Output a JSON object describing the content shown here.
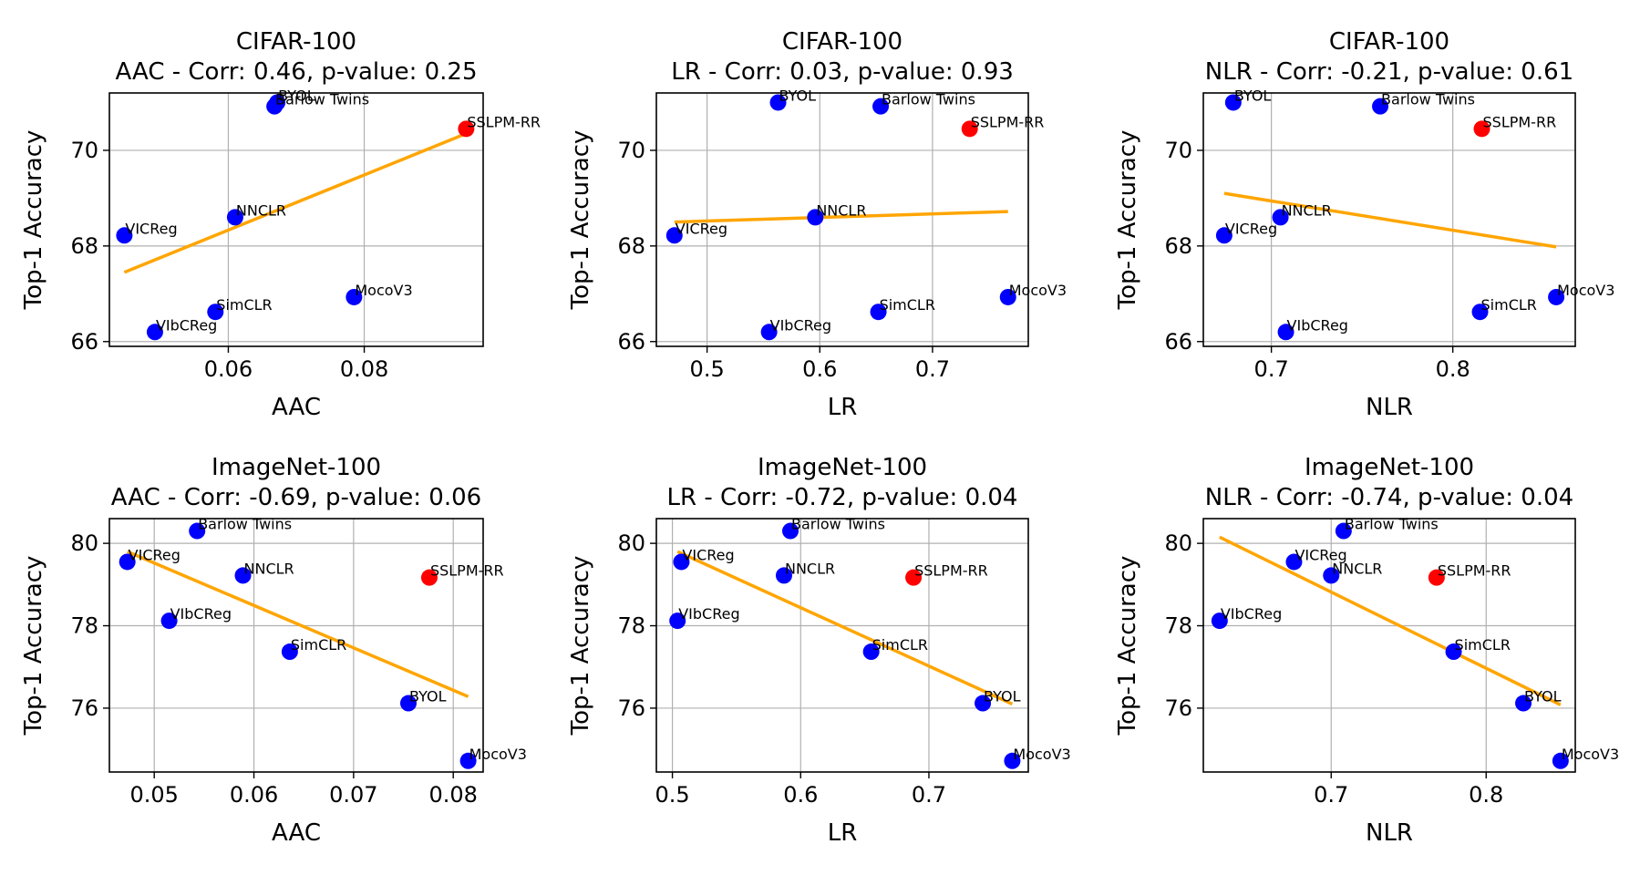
{
  "chart_data": [
    {
      "type": "scatter",
      "title": "CIFAR-100",
      "subtitle": "AAC - Corr: 0.46, p-value: 0.25",
      "xlabel": "AAC",
      "ylabel": "Top-1 Accuracy",
      "xlim": [
        0.0425,
        0.0975
      ],
      "ylim": [
        65.9,
        71.2
      ],
      "xticks": [
        0.06,
        0.08
      ],
      "xtick_labels": [
        "0.06",
        "0.08"
      ],
      "yticks": [
        66,
        68,
        70
      ],
      "ytick_labels": [
        "66",
        "68",
        "70"
      ],
      "grid": true,
      "points": [
        {
          "label": "BYOL",
          "x": 0.0672,
          "y": 71.0,
          "color": "#0000ff"
        },
        {
          "label": "Barlow Twins",
          "x": 0.0668,
          "y": 70.92,
          "color": "#0000ff"
        },
        {
          "label": "SSLPM-RR",
          "x": 0.095,
          "y": 70.45,
          "color": "#ff0000"
        },
        {
          "label": "NNCLR",
          "x": 0.061,
          "y": 68.6,
          "color": "#0000ff"
        },
        {
          "label": "VICReg",
          "x": 0.0447,
          "y": 68.22,
          "color": "#0000ff"
        },
        {
          "label": "MocoV3",
          "x": 0.0785,
          "y": 66.93,
          "color": "#0000ff"
        },
        {
          "label": "SimCLR",
          "x": 0.0581,
          "y": 66.62,
          "color": "#0000ff"
        },
        {
          "label": "VIbCReg",
          "x": 0.0492,
          "y": 66.2,
          "color": "#0000ff"
        }
      ],
      "trend": {
        "x": [
          0.0447,
          0.095
        ],
        "y": [
          67.45,
          70.35
        ],
        "color": "#ffa500"
      }
    },
    {
      "type": "scatter",
      "title": "CIFAR-100",
      "subtitle": "LR - Corr: 0.03, p-value: 0.93",
      "xlabel": "LR",
      "ylabel": "Top-1 Accuracy",
      "xlim": [
        0.455,
        0.785
      ],
      "ylim": [
        65.9,
        71.2
      ],
      "xticks": [
        0.5,
        0.6,
        0.7
      ],
      "xtick_labels": [
        "0.5",
        "0.6",
        "0.7"
      ],
      "yticks": [
        66,
        68,
        70
      ],
      "ytick_labels": [
        "66",
        "68",
        "70"
      ],
      "grid": true,
      "points": [
        {
          "label": "BYOL",
          "x": 0.563,
          "y": 71.0,
          "color": "#0000ff"
        },
        {
          "label": "Barlow Twins",
          "x": 0.654,
          "y": 70.92,
          "color": "#0000ff"
        },
        {
          "label": "SSLPM-RR",
          "x": 0.733,
          "y": 70.45,
          "color": "#ff0000"
        },
        {
          "label": "NNCLR",
          "x": 0.596,
          "y": 68.6,
          "color": "#0000ff"
        },
        {
          "label": "VICReg",
          "x": 0.471,
          "y": 68.22,
          "color": "#0000ff"
        },
        {
          "label": "MocoV3",
          "x": 0.767,
          "y": 66.93,
          "color": "#0000ff"
        },
        {
          "label": "SimCLR",
          "x": 0.652,
          "y": 66.62,
          "color": "#0000ff"
        },
        {
          "label": "VIbCReg",
          "x": 0.555,
          "y": 66.2,
          "color": "#0000ff"
        }
      ],
      "trend": {
        "x": [
          0.471,
          0.767
        ],
        "y": [
          68.5,
          68.72
        ],
        "color": "#ffa500"
      }
    },
    {
      "type": "scatter",
      "title": "CIFAR-100",
      "subtitle": "NLR - Corr: -0.21, p-value: 0.61",
      "xlabel": "NLR",
      "ylabel": "Top-1 Accuracy",
      "xlim": [
        0.6625,
        0.8675
      ],
      "ylim": [
        65.9,
        71.2
      ],
      "xticks": [
        0.7,
        0.8
      ],
      "xtick_labels": [
        "0.7",
        "0.8"
      ],
      "yticks": [
        66,
        68,
        70
      ],
      "ytick_labels": [
        "66",
        "68",
        "70"
      ],
      "grid": true,
      "points": [
        {
          "label": "BYOL",
          "x": 0.679,
          "y": 71.0,
          "color": "#0000ff"
        },
        {
          "label": "Barlow Twins",
          "x": 0.76,
          "y": 70.92,
          "color": "#0000ff"
        },
        {
          "label": "SSLPM-RR",
          "x": 0.816,
          "y": 70.45,
          "color": "#ff0000"
        },
        {
          "label": "NNCLR",
          "x": 0.705,
          "y": 68.6,
          "color": "#0000ff"
        },
        {
          "label": "VICReg",
          "x": 0.674,
          "y": 68.22,
          "color": "#0000ff"
        },
        {
          "label": "MocoV3",
          "x": 0.857,
          "y": 66.93,
          "color": "#0000ff"
        },
        {
          "label": "SimCLR",
          "x": 0.815,
          "y": 66.62,
          "color": "#0000ff"
        },
        {
          "label": "VIbCReg",
          "x": 0.708,
          "y": 66.2,
          "color": "#0000ff"
        }
      ],
      "trend": {
        "x": [
          0.674,
          0.857
        ],
        "y": [
          69.1,
          67.98
        ],
        "color": "#ffa500"
      }
    },
    {
      "type": "scatter",
      "title": "ImageNet-100",
      "subtitle": "AAC - Corr: -0.69, p-value: 0.06",
      "xlabel": "AAC",
      "ylabel": "Top-1 Accuracy",
      "xlim": [
        0.0455,
        0.083
      ],
      "ylim": [
        74.45,
        80.6
      ],
      "xticks": [
        0.05,
        0.06,
        0.07,
        0.08
      ],
      "xtick_labels": [
        "0.05",
        "0.06",
        "0.07",
        "0.08"
      ],
      "yticks": [
        76,
        78,
        80
      ],
      "ytick_labels": [
        "76",
        "78",
        "80"
      ],
      "grid": true,
      "points": [
        {
          "label": "Barlow Twins",
          "x": 0.0543,
          "y": 80.3,
          "color": "#0000ff"
        },
        {
          "label": "VICReg",
          "x": 0.0473,
          "y": 79.55,
          "color": "#0000ff"
        },
        {
          "label": "NNCLR",
          "x": 0.0589,
          "y": 79.22,
          "color": "#0000ff"
        },
        {
          "label": "SSLPM-RR",
          "x": 0.0776,
          "y": 79.17,
          "color": "#ff0000"
        },
        {
          "label": "VIbCReg",
          "x": 0.0515,
          "y": 78.12,
          "color": "#0000ff"
        },
        {
          "label": "SimCLR",
          "x": 0.0636,
          "y": 77.37,
          "color": "#0000ff"
        },
        {
          "label": "BYOL",
          "x": 0.0755,
          "y": 76.12,
          "color": "#0000ff"
        },
        {
          "label": "MocoV3",
          "x": 0.0815,
          "y": 74.72,
          "color": "#0000ff"
        }
      ],
      "trend": {
        "x": [
          0.0473,
          0.0815
        ],
        "y": [
          79.8,
          76.28
        ],
        "color": "#ffa500"
      }
    },
    {
      "type": "scatter",
      "title": "ImageNet-100",
      "subtitle": "LR - Corr: -0.72, p-value: 0.04",
      "xlabel": "LR",
      "ylabel": "Top-1 Accuracy",
      "xlim": [
        0.4875,
        0.7775
      ],
      "ylim": [
        74.45,
        80.6
      ],
      "xticks": [
        0.5,
        0.6,
        0.7
      ],
      "xtick_labels": [
        "0.5",
        "0.6",
        "0.7"
      ],
      "yticks": [
        76,
        78,
        80
      ],
      "ytick_labels": [
        "76",
        "78",
        "80"
      ],
      "grid": true,
      "points": [
        {
          "label": "Barlow Twins",
          "x": 0.592,
          "y": 80.3,
          "color": "#0000ff"
        },
        {
          "label": "VICReg",
          "x": 0.507,
          "y": 79.55,
          "color": "#0000ff"
        },
        {
          "label": "NNCLR",
          "x": 0.587,
          "y": 79.22,
          "color": "#0000ff"
        },
        {
          "label": "SSLPM-RR",
          "x": 0.688,
          "y": 79.17,
          "color": "#ff0000"
        },
        {
          "label": "VIbCReg",
          "x": 0.504,
          "y": 78.12,
          "color": "#0000ff"
        },
        {
          "label": "SimCLR",
          "x": 0.655,
          "y": 77.37,
          "color": "#0000ff"
        },
        {
          "label": "BYOL",
          "x": 0.742,
          "y": 76.12,
          "color": "#0000ff"
        },
        {
          "label": "MocoV3",
          "x": 0.765,
          "y": 74.72,
          "color": "#0000ff"
        }
      ],
      "trend": {
        "x": [
          0.504,
          0.765
        ],
        "y": [
          79.8,
          76.1
        ],
        "color": "#ffa500"
      }
    },
    {
      "type": "scatter",
      "title": "ImageNet-100",
      "subtitle": "NLR - Corr: -0.74, p-value: 0.04",
      "xlabel": "NLR",
      "ylabel": "Top-1 Accuracy",
      "xlim": [
        0.6175,
        0.8575
      ],
      "ylim": [
        74.45,
        80.6
      ],
      "xticks": [
        0.7,
        0.8
      ],
      "xtick_labels": [
        "0.7",
        "0.8"
      ],
      "yticks": [
        76,
        78,
        80
      ],
      "ytick_labels": [
        "76",
        "78",
        "80"
      ],
      "grid": true,
      "points": [
        {
          "label": "Barlow Twins",
          "x": 0.708,
          "y": 80.3,
          "color": "#0000ff"
        },
        {
          "label": "VICReg",
          "x": 0.676,
          "y": 79.55,
          "color": "#0000ff"
        },
        {
          "label": "NNCLR",
          "x": 0.7,
          "y": 79.22,
          "color": "#0000ff"
        },
        {
          "label": "SSLPM-RR",
          "x": 0.768,
          "y": 79.17,
          "color": "#ff0000"
        },
        {
          "label": "VIbCReg",
          "x": 0.628,
          "y": 78.12,
          "color": "#0000ff"
        },
        {
          "label": "SimCLR",
          "x": 0.779,
          "y": 77.37,
          "color": "#0000ff"
        },
        {
          "label": "BYOL",
          "x": 0.824,
          "y": 76.12,
          "color": "#0000ff"
        },
        {
          "label": "MocoV3",
          "x": 0.848,
          "y": 74.72,
          "color": "#0000ff"
        }
      ],
      "trend": {
        "x": [
          0.628,
          0.848
        ],
        "y": [
          80.15,
          76.08
        ],
        "color": "#ffa500"
      }
    }
  ]
}
